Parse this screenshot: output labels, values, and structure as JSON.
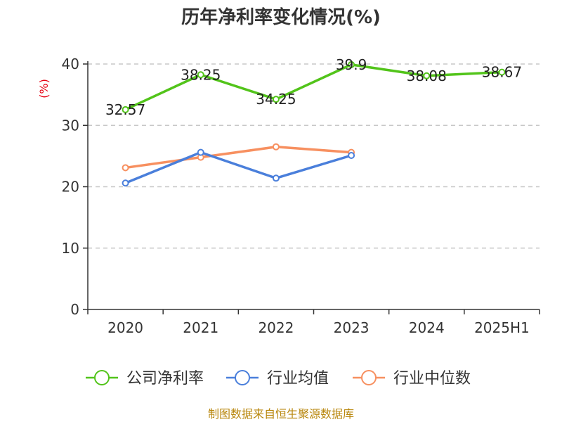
{
  "chart_data": {
    "type": "line",
    "title": "历年净利率变化情况(%)",
    "ylabel": "(%)",
    "ylim": [
      0,
      40
    ],
    "yticks": [
      0,
      10,
      20,
      30,
      40
    ],
    "grid": "horizontal-dashed",
    "legend_position": "bottom",
    "categories": [
      "2020",
      "2021",
      "2022",
      "2023",
      "2024",
      "2025H1"
    ],
    "series": [
      {
        "name": "公司净利率",
        "color": "#52c41a",
        "values": [
          32.57,
          38.25,
          34.25,
          39.9,
          38.08,
          38.67
        ],
        "data_labels": [
          "32.57",
          "38.25",
          "34.25",
          "39.9",
          "38.08",
          "38.67"
        ]
      },
      {
        "name": "行业均值",
        "color": "#4a7fdb",
        "values": [
          20.6,
          25.6,
          21.4,
          25.1,
          null,
          null
        ]
      },
      {
        "name": "行业中位数",
        "color": "#f79060",
        "values": [
          23.1,
          24.8,
          26.5,
          25.6,
          null,
          null
        ]
      }
    ]
  },
  "footer": {
    "source": "制图数据来自恒生聚源数据库"
  }
}
